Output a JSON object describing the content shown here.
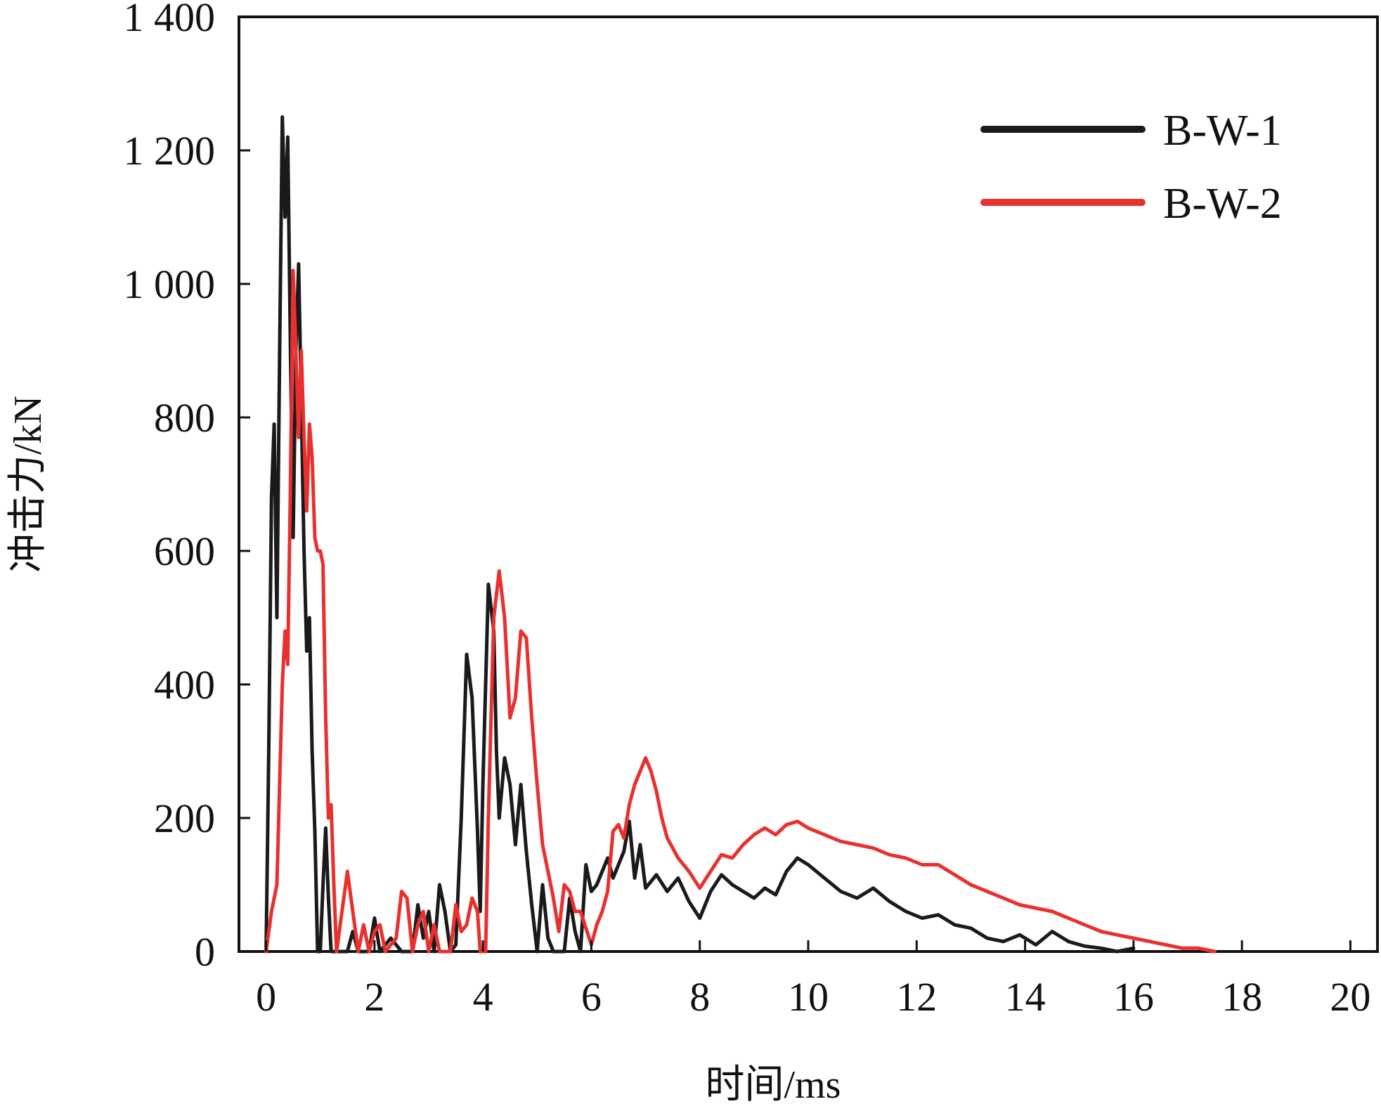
{
  "chart_data": {
    "type": "line",
    "xlabel": "时间/ms",
    "ylabel": "冲击力/kN",
    "xlim": [
      -0.5,
      20.5
    ],
    "ylim": [
      0,
      1400
    ],
    "xticks": [
      0,
      2,
      4,
      6,
      8,
      10,
      12,
      14,
      16,
      18,
      20
    ],
    "xtick_labels": [
      "0",
      "2",
      "4",
      "6",
      "8",
      "10",
      "12",
      "14",
      "16",
      "18",
      "20"
    ],
    "yticks": [
      0,
      200,
      400,
      600,
      800,
      1000,
      1200,
      1400
    ],
    "ytick_labels": [
      "0",
      "200",
      "400",
      "600",
      "800",
      "1 000",
      "1 200",
      "1 400"
    ],
    "legend_position": "top-right",
    "grid": false,
    "series": [
      {
        "name": "B-W-1",
        "color": "#1a1a1a",
        "points": [
          [
            0.0,
            0
          ],
          [
            0.05,
            300
          ],
          [
            0.1,
            680
          ],
          [
            0.15,
            790
          ],
          [
            0.2,
            500
          ],
          [
            0.25,
            900
          ],
          [
            0.3,
            1250
          ],
          [
            0.35,
            1100
          ],
          [
            0.4,
            1220
          ],
          [
            0.45,
            900
          ],
          [
            0.5,
            620
          ],
          [
            0.55,
            900
          ],
          [
            0.6,
            1030
          ],
          [
            0.65,
            820
          ],
          [
            0.7,
            600
          ],
          [
            0.75,
            450
          ],
          [
            0.8,
            500
          ],
          [
            0.85,
            300
          ],
          [
            0.9,
            180
          ],
          [
            0.95,
            0
          ],
          [
            1.0,
            0
          ],
          [
            1.05,
            100
          ],
          [
            1.1,
            185
          ],
          [
            1.15,
            80
          ],
          [
            1.2,
            0
          ],
          [
            1.5,
            0
          ],
          [
            1.6,
            30
          ],
          [
            1.7,
            0
          ],
          [
            1.9,
            0
          ],
          [
            2.0,
            50
          ],
          [
            2.1,
            0
          ],
          [
            2.3,
            20
          ],
          [
            2.5,
            0
          ],
          [
            2.7,
            0
          ],
          [
            2.8,
            70
          ],
          [
            2.9,
            20
          ],
          [
            3.0,
            60
          ],
          [
            3.1,
            0
          ],
          [
            3.2,
            100
          ],
          [
            3.3,
            60
          ],
          [
            3.4,
            0
          ],
          [
            3.5,
            10
          ],
          [
            3.6,
            200
          ],
          [
            3.7,
            445
          ],
          [
            3.8,
            380
          ],
          [
            3.9,
            180
          ],
          [
            3.95,
            60
          ],
          [
            4.0,
            250
          ],
          [
            4.1,
            550
          ],
          [
            4.2,
            480
          ],
          [
            4.25,
            300
          ],
          [
            4.3,
            200
          ],
          [
            4.4,
            290
          ],
          [
            4.5,
            250
          ],
          [
            4.6,
            160
          ],
          [
            4.7,
            250
          ],
          [
            4.8,
            150
          ],
          [
            4.9,
            70
          ],
          [
            5.0,
            0
          ],
          [
            5.1,
            100
          ],
          [
            5.2,
            20
          ],
          [
            5.3,
            0
          ],
          [
            5.5,
            0
          ],
          [
            5.6,
            80
          ],
          [
            5.7,
            30
          ],
          [
            5.8,
            0
          ],
          [
            5.9,
            130
          ],
          [
            6.0,
            90
          ],
          [
            6.1,
            100
          ],
          [
            6.2,
            120
          ],
          [
            6.3,
            140
          ],
          [
            6.4,
            110
          ],
          [
            6.5,
            130
          ],
          [
            6.6,
            150
          ],
          [
            6.7,
            195
          ],
          [
            6.8,
            110
          ],
          [
            6.9,
            160
          ],
          [
            7.0,
            95
          ],
          [
            7.2,
            115
          ],
          [
            7.4,
            90
          ],
          [
            7.6,
            110
          ],
          [
            7.8,
            75
          ],
          [
            8.0,
            50
          ],
          [
            8.2,
            90
          ],
          [
            8.4,
            115
          ],
          [
            8.6,
            100
          ],
          [
            8.8,
            90
          ],
          [
            9.0,
            80
          ],
          [
            9.2,
            95
          ],
          [
            9.4,
            85
          ],
          [
            9.6,
            120
          ],
          [
            9.8,
            140
          ],
          [
            10.0,
            130
          ],
          [
            10.3,
            110
          ],
          [
            10.6,
            90
          ],
          [
            10.9,
            80
          ],
          [
            11.2,
            95
          ],
          [
            11.5,
            75
          ],
          [
            11.8,
            60
          ],
          [
            12.1,
            50
          ],
          [
            12.4,
            55
          ],
          [
            12.7,
            40
          ],
          [
            13.0,
            35
          ],
          [
            13.3,
            20
          ],
          [
            13.6,
            15
          ],
          [
            13.9,
            25
          ],
          [
            14.2,
            10
          ],
          [
            14.5,
            30
          ],
          [
            14.8,
            15
          ],
          [
            15.1,
            8
          ],
          [
            15.4,
            5
          ],
          [
            15.7,
            0
          ],
          [
            16.0,
            5
          ]
        ]
      },
      {
        "name": "B-W-2",
        "color": "#e8312f",
        "points": [
          [
            0.0,
            0
          ],
          [
            0.1,
            60
          ],
          [
            0.2,
            100
          ],
          [
            0.3,
            400
          ],
          [
            0.35,
            480
          ],
          [
            0.4,
            430
          ],
          [
            0.45,
            700
          ],
          [
            0.5,
            1020
          ],
          [
            0.55,
            900
          ],
          [
            0.6,
            770
          ],
          [
            0.65,
            900
          ],
          [
            0.7,
            770
          ],
          [
            0.75,
            660
          ],
          [
            0.8,
            790
          ],
          [
            0.85,
            740
          ],
          [
            0.9,
            620
          ],
          [
            0.95,
            600
          ],
          [
            1.0,
            600
          ],
          [
            1.05,
            580
          ],
          [
            1.1,
            350
          ],
          [
            1.15,
            200
          ],
          [
            1.2,
            220
          ],
          [
            1.25,
            100
          ],
          [
            1.3,
            0
          ],
          [
            1.4,
            60
          ],
          [
            1.5,
            120
          ],
          [
            1.6,
            60
          ],
          [
            1.7,
            0
          ],
          [
            1.8,
            40
          ],
          [
            1.9,
            0
          ],
          [
            2.0,
            30
          ],
          [
            2.1,
            40
          ],
          [
            2.2,
            0
          ],
          [
            2.4,
            20
          ],
          [
            2.5,
            90
          ],
          [
            2.6,
            80
          ],
          [
            2.7,
            0
          ],
          [
            2.8,
            40
          ],
          [
            2.9,
            60
          ],
          [
            3.0,
            0
          ],
          [
            3.1,
            40
          ],
          [
            3.2,
            0
          ],
          [
            3.4,
            0
          ],
          [
            3.5,
            70
          ],
          [
            3.6,
            30
          ],
          [
            3.7,
            40
          ],
          [
            3.8,
            80
          ],
          [
            3.9,
            60
          ],
          [
            3.95,
            0
          ],
          [
            4.05,
            0
          ],
          [
            4.1,
            200
          ],
          [
            4.2,
            500
          ],
          [
            4.3,
            570
          ],
          [
            4.4,
            500
          ],
          [
            4.5,
            350
          ],
          [
            4.6,
            380
          ],
          [
            4.7,
            480
          ],
          [
            4.8,
            470
          ],
          [
            4.9,
            350
          ],
          [
            5.0,
            250
          ],
          [
            5.1,
            160
          ],
          [
            5.2,
            120
          ],
          [
            5.3,
            80
          ],
          [
            5.4,
            30
          ],
          [
            5.5,
            100
          ],
          [
            5.6,
            90
          ],
          [
            5.7,
            60
          ],
          [
            5.8,
            60
          ],
          [
            6.0,
            10
          ],
          [
            6.1,
            40
          ],
          [
            6.2,
            60
          ],
          [
            6.3,
            90
          ],
          [
            6.4,
            180
          ],
          [
            6.5,
            190
          ],
          [
            6.6,
            170
          ],
          [
            6.7,
            220
          ],
          [
            6.8,
            250
          ],
          [
            6.9,
            270
          ],
          [
            7.0,
            290
          ],
          [
            7.1,
            270
          ],
          [
            7.2,
            240
          ],
          [
            7.3,
            200
          ],
          [
            7.4,
            170
          ],
          [
            7.6,
            140
          ],
          [
            7.8,
            120
          ],
          [
            8.0,
            95
          ],
          [
            8.2,
            120
          ],
          [
            8.4,
            145
          ],
          [
            8.6,
            140
          ],
          [
            8.8,
            160
          ],
          [
            9.0,
            175
          ],
          [
            9.2,
            185
          ],
          [
            9.4,
            175
          ],
          [
            9.6,
            190
          ],
          [
            9.8,
            195
          ],
          [
            10.0,
            185
          ],
          [
            10.3,
            175
          ],
          [
            10.6,
            165
          ],
          [
            10.9,
            160
          ],
          [
            11.2,
            155
          ],
          [
            11.5,
            145
          ],
          [
            11.8,
            140
          ],
          [
            12.1,
            130
          ],
          [
            12.4,
            130
          ],
          [
            12.7,
            115
          ],
          [
            13.0,
            100
          ],
          [
            13.3,
            90
          ],
          [
            13.6,
            80
          ],
          [
            13.9,
            70
          ],
          [
            14.2,
            65
          ],
          [
            14.5,
            60
          ],
          [
            14.8,
            50
          ],
          [
            15.1,
            40
          ],
          [
            15.4,
            30
          ],
          [
            15.7,
            25
          ],
          [
            16.0,
            20
          ],
          [
            16.3,
            15
          ],
          [
            16.6,
            10
          ],
          [
            16.9,
            5
          ],
          [
            17.2,
            5
          ],
          [
            17.5,
            0
          ]
        ]
      }
    ]
  }
}
